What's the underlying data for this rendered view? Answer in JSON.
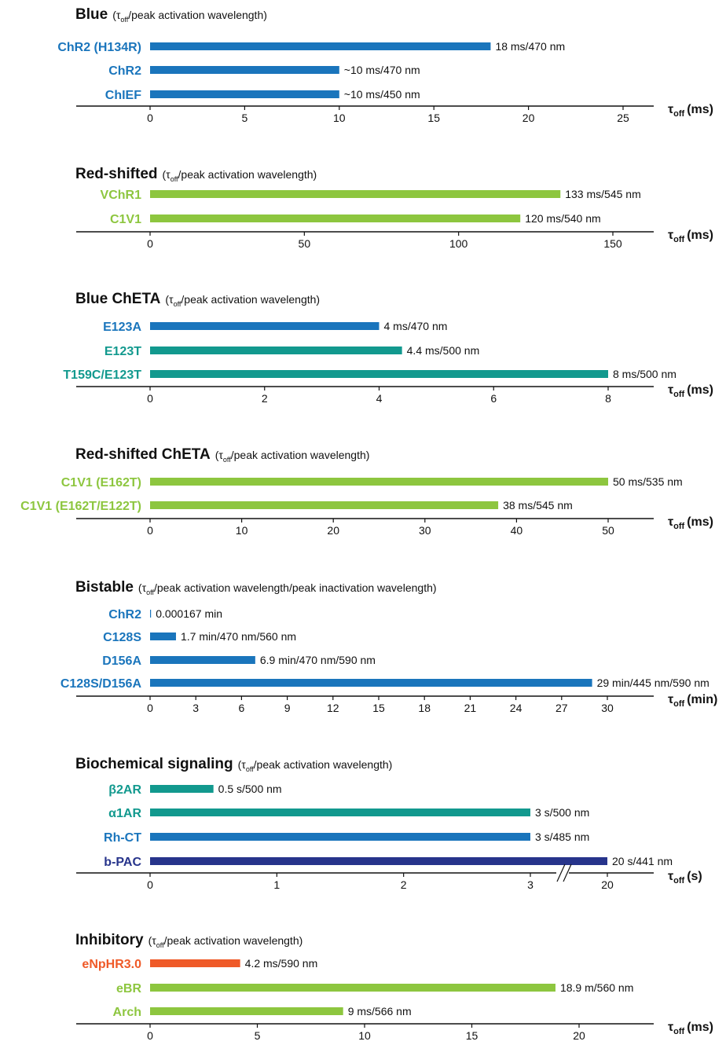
{
  "colors": {
    "blue": "#1a75bc",
    "green": "#8dc63f",
    "teal": "#12998e",
    "navy": "#27348b",
    "orange": "#ef5a28"
  },
  "chart_data": [
    {
      "type": "bar",
      "title": "Blue",
      "subtitle_pre": "(τ",
      "subtitle_sub": "off",
      "subtitle_post": "/peak activation wavelength)",
      "axis_label": {
        "tau": "τ",
        "sub": "off",
        "unit": "(ms)"
      },
      "xlim": [
        0,
        27
      ],
      "ticks": [
        0,
        5,
        10,
        15,
        20,
        25
      ],
      "tick_labels": [
        "0",
        "5",
        "10",
        "15",
        "20",
        "25"
      ],
      "bars": [
        {
          "label": "ChR2 (H134R)",
          "value": 18,
          "annotation": "18 ms/470 nm",
          "color": "blue"
        },
        {
          "label": "ChR2",
          "value": 10,
          "annotation": "~10 ms/470 nm",
          "color": "blue"
        },
        {
          "label": "ChIEF",
          "value": 10,
          "annotation": "~10 ms/450 nm",
          "color": "blue"
        }
      ]
    },
    {
      "type": "bar",
      "title": "Red-shifted",
      "subtitle_pre": "(τ",
      "subtitle_sub": "off",
      "subtitle_post": "/peak activation wavelength)",
      "axis_label": {
        "tau": "τ",
        "sub": "off",
        "unit": "(ms)"
      },
      "xlim": [
        0,
        160
      ],
      "ticks": [
        0,
        50,
        100,
        150
      ],
      "tick_labels": [
        "0",
        "50",
        "100",
        "150"
      ],
      "bars": [
        {
          "label": "VChR1",
          "value": 133,
          "annotation": "133 ms/545 nm",
          "color": "green"
        },
        {
          "label": "C1V1",
          "value": 120,
          "annotation": "120 ms/540 nm",
          "color": "green"
        }
      ]
    },
    {
      "type": "bar",
      "title": "Blue ChETA",
      "subtitle_pre": "(τ",
      "subtitle_sub": "off",
      "subtitle_post": "/peak activation wavelength)",
      "axis_label": {
        "tau": "τ",
        "sub": "off",
        "unit": "(ms)"
      },
      "xlim": [
        0,
        8.8
      ],
      "ticks": [
        0,
        2,
        4,
        6,
        8
      ],
      "tick_labels": [
        "0",
        "2",
        "4",
        "6",
        "8"
      ],
      "bars": [
        {
          "label": "E123A",
          "value": 4,
          "annotation": "4 ms/470 nm",
          "color": "blue"
        },
        {
          "label": "E123T",
          "value": 4.4,
          "annotation": "4.4 ms/500 nm",
          "color": "teal"
        },
        {
          "label": "T159C/E123T",
          "value": 8,
          "annotation": "8 ms/500 nm",
          "color": "teal"
        }
      ]
    },
    {
      "type": "bar",
      "title": "Red-shifted ChETA",
      "subtitle_pre": "(τ",
      "subtitle_sub": "off",
      "subtitle_post": "/peak activation wavelength)",
      "axis_label": {
        "tau": "τ",
        "sub": "off",
        "unit": "(ms)"
      },
      "xlim": [
        0,
        55
      ],
      "ticks": [
        0,
        10,
        20,
        30,
        40,
        50
      ],
      "tick_labels": [
        "0",
        "10",
        "20",
        "30",
        "40",
        "50"
      ],
      "bars": [
        {
          "label": "C1V1 (E162T)",
          "value": 50,
          "annotation": "50 ms/535 nm",
          "color": "green"
        },
        {
          "label": "C1V1 (E162T/E122T)",
          "value": 38,
          "annotation": "38 ms/545 nm",
          "color": "green"
        }
      ]
    },
    {
      "type": "bar",
      "title": "Bistable",
      "subtitle_pre": "(τ",
      "subtitle_sub": "off",
      "subtitle_post": "/peak activation wavelength/peak inactivation wavelength)",
      "axis_label": {
        "tau": "τ",
        "sub": "off",
        "unit": "(min)"
      },
      "xlim": [
        0,
        33
      ],
      "ticks": [
        0,
        3,
        6,
        9,
        12,
        15,
        18,
        21,
        24,
        27,
        30
      ],
      "tick_labels": [
        "0",
        "3",
        "6",
        "9",
        "12",
        "15",
        "18",
        "21",
        "24",
        "27",
        "30"
      ],
      "bars": [
        {
          "label": "ChR2",
          "value": 0.000167,
          "annotation": "0.000167 min",
          "color": "blue"
        },
        {
          "label": "C128S",
          "value": 1.7,
          "annotation": "1.7 min/470 nm/560 nm",
          "color": "blue"
        },
        {
          "label": "D156A",
          "value": 6.9,
          "annotation": "6.9 min/470 nm/590 nm",
          "color": "blue"
        },
        {
          "label": "C128S/D156A",
          "value": 29,
          "annotation": "29 min/445 nm/590 nm",
          "color": "blue"
        }
      ]
    },
    {
      "type": "bar",
      "title": "Biochemical signaling",
      "subtitle_pre": "(τ",
      "subtitle_sub": "off",
      "subtitle_post": "/peak activation wavelength)",
      "axis_label": {
        "tau": "τ",
        "sub": "off",
        "unit": "(s)"
      },
      "axis_break": true,
      "ticks": [
        0,
        1,
        2,
        3,
        20
      ],
      "tick_labels": [
        "0",
        "1",
        "2",
        "3",
        "20"
      ],
      "bars": [
        {
          "label": "β2AR",
          "value": 0.5,
          "annotation": "0.5 s/500 nm",
          "color": "teal"
        },
        {
          "label": "α1AR",
          "value": 3,
          "annotation": "3 s/500 nm",
          "color": "teal"
        },
        {
          "label": "Rh-CT",
          "value": 3,
          "annotation": "3 s/485 nm",
          "color": "blue"
        },
        {
          "label": "b-PAC",
          "value": 20,
          "annotation": "20 s/441 nm",
          "color": "navy"
        }
      ]
    },
    {
      "type": "bar",
      "title": "Inhibitory",
      "subtitle_pre": "(τ",
      "subtitle_sub": "off",
      "subtitle_post": "/peak activation wavelength)",
      "axis_label": {
        "tau": "τ",
        "sub": "off",
        "unit": "(ms)"
      },
      "xlim": [
        0,
        23
      ],
      "ticks": [
        0,
        5,
        10,
        15,
        20
      ],
      "tick_labels": [
        "0",
        "5",
        "10",
        "15",
        "20"
      ],
      "bars": [
        {
          "label": "eNpHR3.0",
          "value": 4.2,
          "annotation": "4.2 ms/590 nm",
          "color": "orange"
        },
        {
          "label": "eBR",
          "value": 18.9,
          "annotation": "18.9 m/560 nm",
          "color": "green"
        },
        {
          "label": "Arch",
          "value": 9,
          "annotation": "9 ms/566 nm",
          "color": "green"
        }
      ]
    }
  ]
}
